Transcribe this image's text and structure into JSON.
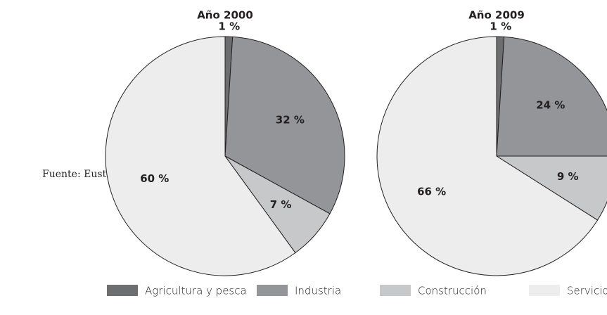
{
  "source": "Fuente: Eustat",
  "categories": [
    "Agricultura y pesca",
    "Industria",
    "Construcción",
    "Servicios"
  ],
  "colors": [
    "#6d6e70",
    "#939598",
    "#c7c8ca",
    "#ededee"
  ],
  "chart_data": [
    {
      "type": "pie",
      "title": "Año 2000",
      "values": [
        1,
        32,
        7,
        60
      ],
      "value_labels": [
        "1 %",
        "32 %",
        "7 %",
        "60 %"
      ]
    },
    {
      "type": "pie",
      "title": "Año 2009",
      "values": [
        1,
        24,
        9,
        66
      ],
      "value_labels": [
        "1 %",
        "24 %",
        "9 %",
        "66 %"
      ]
    }
  ]
}
